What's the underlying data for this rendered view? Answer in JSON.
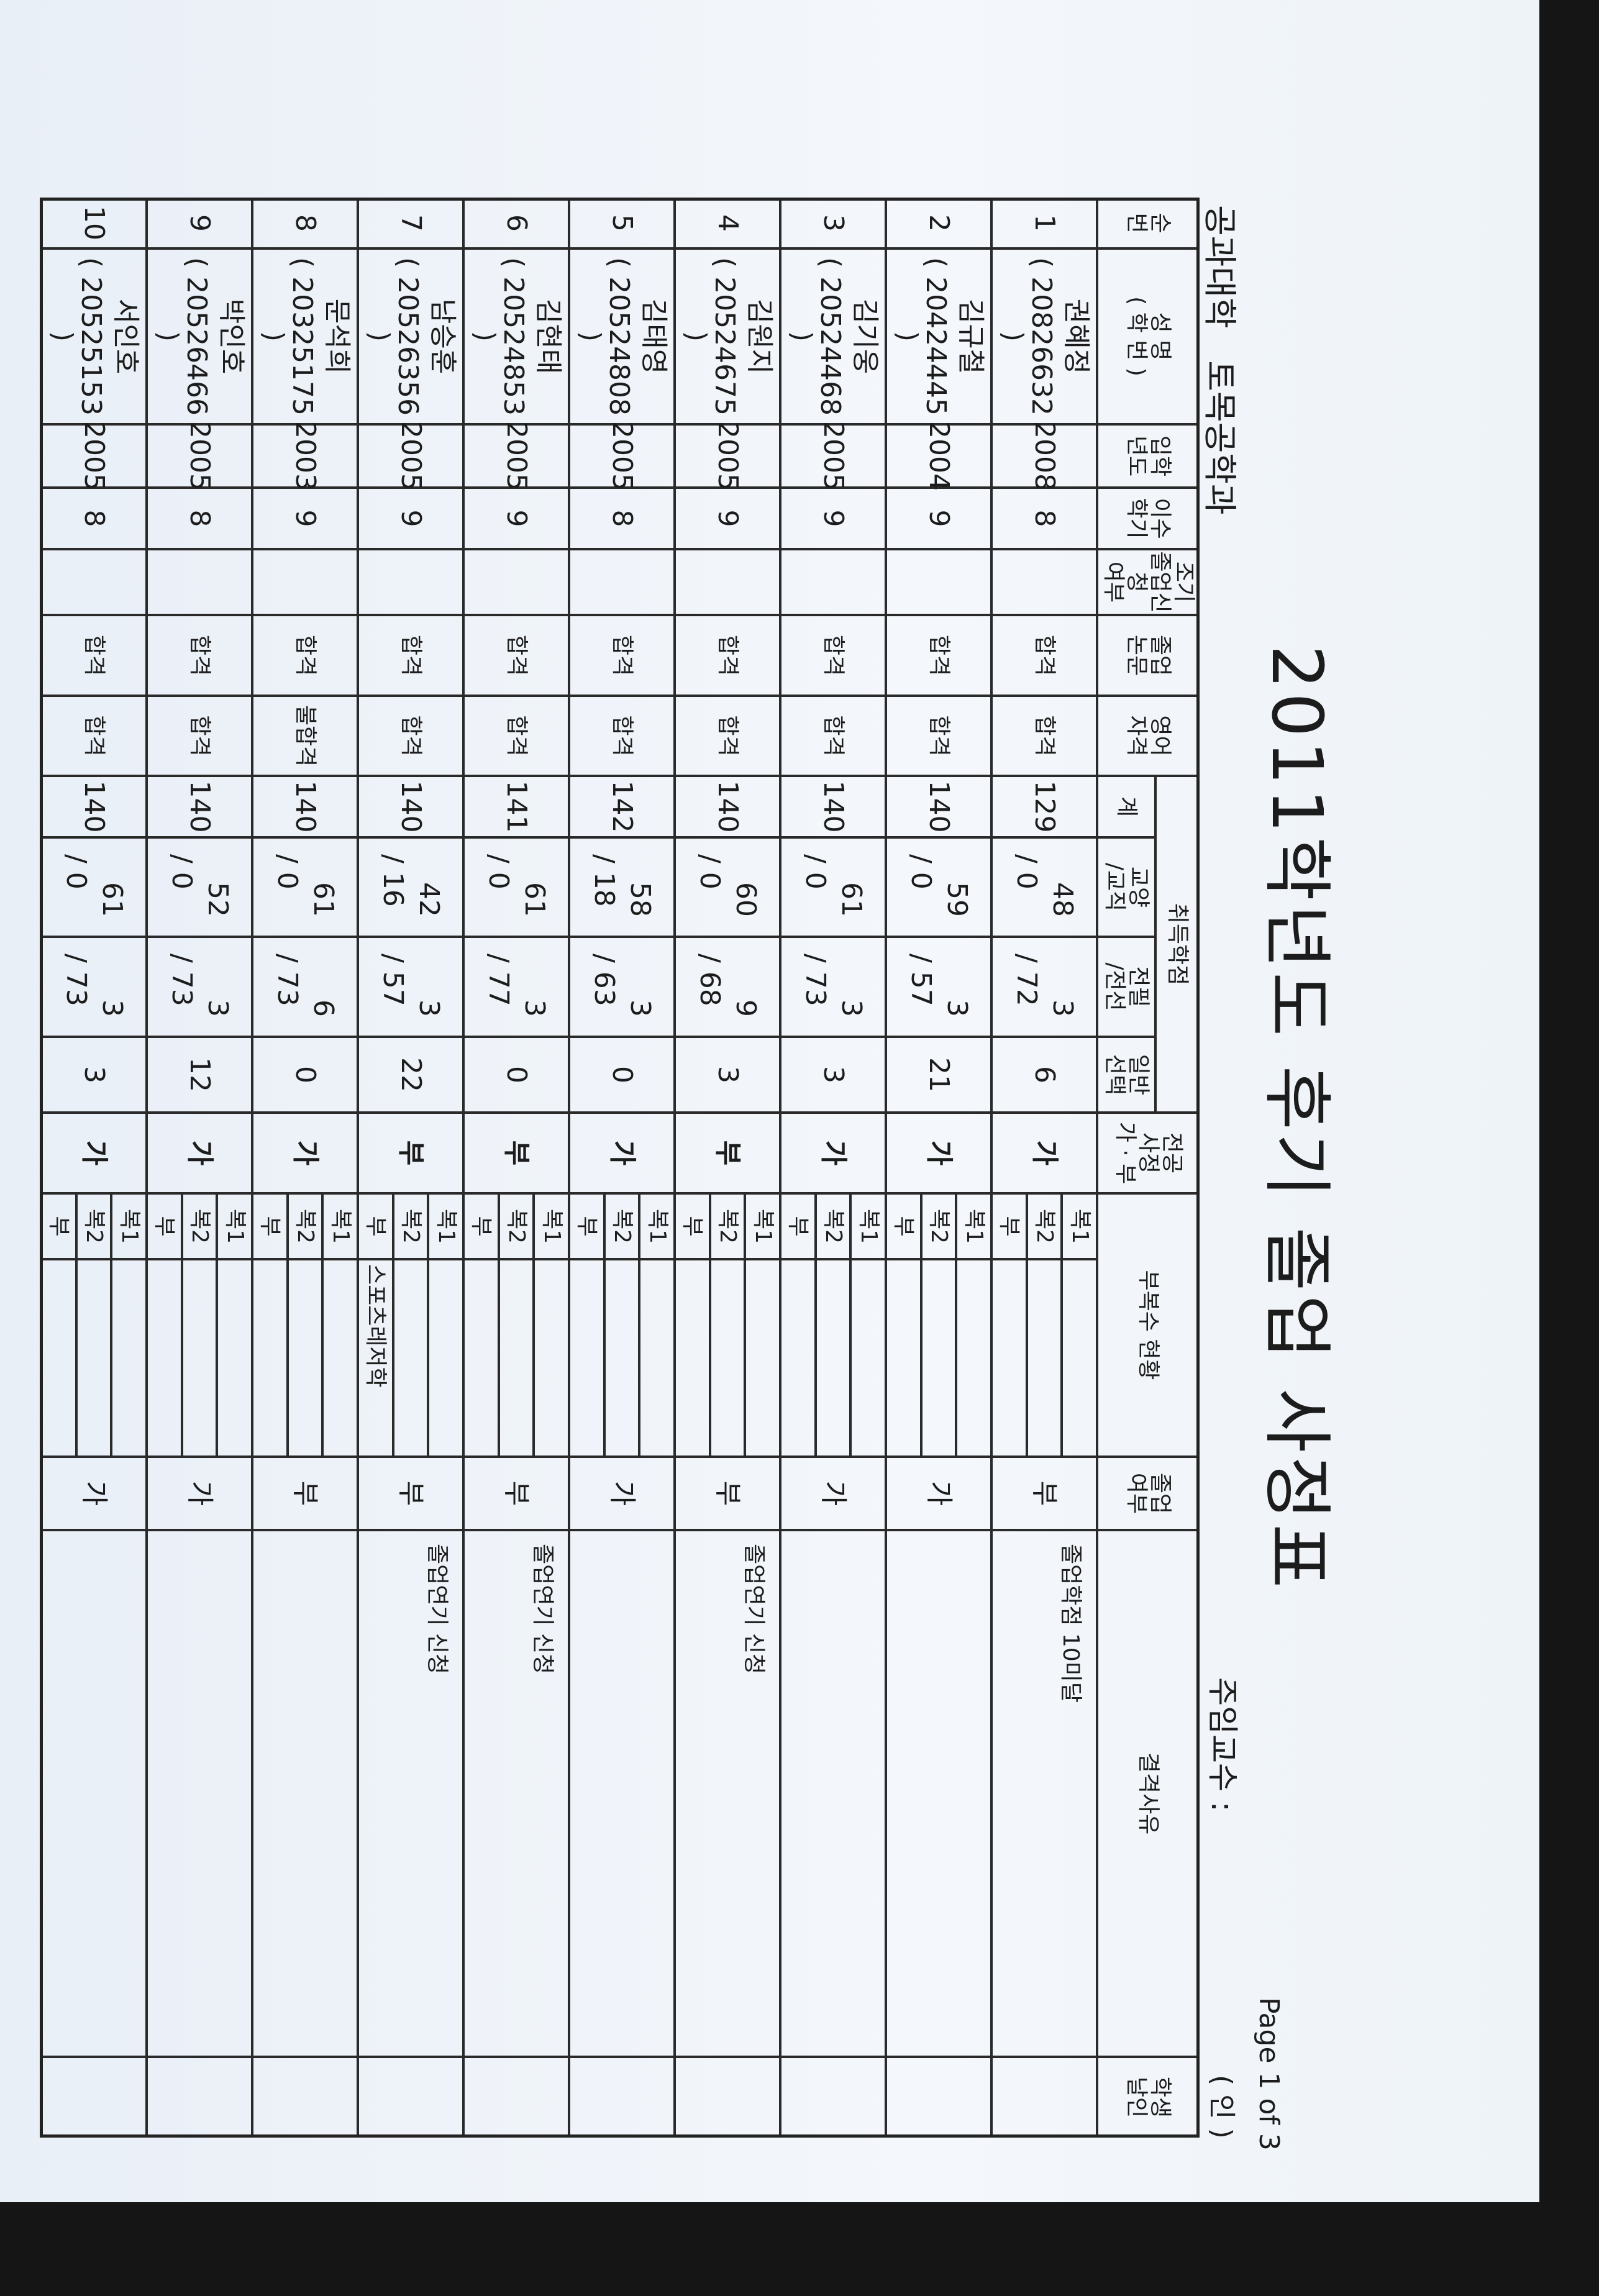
{
  "title": "2011학년도 후기 졸업 사정표",
  "department": "공과대학   토목공학과",
  "advisor_label": "주임교수 :",
  "page": "Page 1 of 3",
  "seal_mark": "( 인 )",
  "headers": {
    "no": "순\n번",
    "name": "성  명\n( 학  번 )",
    "year": "입학\n년도",
    "semester": "이수\n학기",
    "early": "조기\n졸업신청\n여부",
    "thesis": "졸업\n논문",
    "english": "영어\n자격",
    "credits_group": "취득학점",
    "total": "계",
    "gyo": "교양\n/교직",
    "jeon": "전필\n/전선",
    "ilban": "일반\n선택",
    "major_eval": "전공\n사정\n가 · 부",
    "minor_status": "부복수  현황",
    "grad": "졸업\n여부",
    "reason": "결격사유",
    "seal": "학생\n날인"
  },
  "minor_labels": [
    "복1",
    "복2",
    "부"
  ],
  "rows": [
    {
      "no": "1",
      "name": "권혜정",
      "id": "( 20826632 )",
      "year": "2008",
      "semester": "8",
      "early": "",
      "thesis": "합격",
      "english": "합격",
      "total": "129",
      "gyo": "48",
      "gyojik": "/ 0",
      "jeonpil": "3",
      "jeonseon": "/ 72",
      "ilban": "6",
      "major_eval": "가",
      "minor": [
        "",
        "",
        ""
      ],
      "grad": "부",
      "reason": "졸업학점 10미달",
      "seal": ""
    },
    {
      "no": "2",
      "name": "김규철",
      "id": "( 20424445 )",
      "year": "2004",
      "semester": "9",
      "early": "",
      "thesis": "합격",
      "english": "합격",
      "total": "140",
      "gyo": "59",
      "gyojik": "/ 0",
      "jeonpil": "3",
      "jeonseon": "/ 57",
      "ilban": "21",
      "major_eval": "가",
      "minor": [
        "",
        "",
        ""
      ],
      "grad": "가",
      "reason": "",
      "seal": ""
    },
    {
      "no": "3",
      "name": "김기웅",
      "id": "( 20524468 )",
      "year": "2005",
      "semester": "9",
      "early": "",
      "thesis": "합격",
      "english": "합격",
      "total": "140",
      "gyo": "61",
      "gyojik": "/ 0",
      "jeonpil": "3",
      "jeonseon": "/ 73",
      "ilban": "3",
      "major_eval": "가",
      "minor": [
        "",
        "",
        ""
      ],
      "grad": "가",
      "reason": "",
      "seal": ""
    },
    {
      "no": "4",
      "name": "김원지",
      "id": "( 20524675 )",
      "year": "2005",
      "semester": "9",
      "early": "",
      "thesis": "합격",
      "english": "합격",
      "total": "140",
      "gyo": "60",
      "gyojik": "/ 0",
      "jeonpil": "9",
      "jeonseon": "/ 68",
      "ilban": "3",
      "major_eval": "부",
      "minor": [
        "",
        "",
        ""
      ],
      "grad": "부",
      "reason": "졸업연기 신청",
      "seal": ""
    },
    {
      "no": "5",
      "name": "김태영",
      "id": "( 20524808 )",
      "year": "2005",
      "semester": "8",
      "early": "",
      "thesis": "합격",
      "english": "합격",
      "total": "142",
      "gyo": "58",
      "gyojik": "/ 18",
      "jeonpil": "3",
      "jeonseon": "/ 63",
      "ilban": "0",
      "major_eval": "가",
      "minor": [
        "",
        "",
        ""
      ],
      "grad": "가",
      "reason": "",
      "seal": ""
    },
    {
      "no": "6",
      "name": "김현태",
      "id": "( 20524853 )",
      "year": "2005",
      "semester": "9",
      "early": "",
      "thesis": "합격",
      "english": "합격",
      "total": "141",
      "gyo": "61",
      "gyojik": "/ 0",
      "jeonpil": "3",
      "jeonseon": "/ 77",
      "ilban": "0",
      "major_eval": "부",
      "minor": [
        "",
        "",
        ""
      ],
      "grad": "부",
      "reason": "졸업연기 신청",
      "seal": ""
    },
    {
      "no": "7",
      "name": "남승훈",
      "id": "( 20526356 )",
      "year": "2005",
      "semester": "9",
      "early": "",
      "thesis": "합격",
      "english": "합격",
      "total": "140",
      "gyo": "42",
      "gyojik": "/ 16",
      "jeonpil": "3",
      "jeonseon": "/ 57",
      "ilban": "22",
      "major_eval": "부",
      "minor": [
        "",
        "",
        "스포츠레저학"
      ],
      "grad": "부",
      "reason": "졸업연기 신청",
      "seal": ""
    },
    {
      "no": "8",
      "name": "문석희",
      "id": "( 20325175 )",
      "year": "2003",
      "semester": "9",
      "early": "",
      "thesis": "합격",
      "english": "불합격",
      "total": "140",
      "gyo": "61",
      "gyojik": "/ 0",
      "jeonpil": "6",
      "jeonseon": "/ 73",
      "ilban": "0",
      "major_eval": "가",
      "minor": [
        "",
        "",
        ""
      ],
      "grad": "부",
      "reason": "",
      "seal": ""
    },
    {
      "no": "9",
      "name": "박인호",
      "id": "( 20526466 )",
      "year": "2005",
      "semester": "8",
      "early": "",
      "thesis": "합격",
      "english": "합격",
      "total": "140",
      "gyo": "52",
      "gyojik": "/ 0",
      "jeonpil": "3",
      "jeonseon": "/ 73",
      "ilban": "12",
      "major_eval": "가",
      "minor": [
        "",
        "",
        ""
      ],
      "grad": "가",
      "reason": "",
      "seal": ""
    },
    {
      "no": "10",
      "name": "서인호",
      "id": "( 20525153 )",
      "year": "2005",
      "semester": "8",
      "early": "",
      "thesis": "합격",
      "english": "합격",
      "total": "140",
      "gyo": "61",
      "gyojik": "/ 0",
      "jeonpil": "3",
      "jeonseon": "/ 73",
      "ilban": "3",
      "major_eval": "가",
      "minor": [
        "",
        "",
        ""
      ],
      "grad": "가",
      "reason": "",
      "seal": ""
    }
  ],
  "colors": {
    "ink": "#1c1c1c",
    "paper": "#f1f5fa",
    "scanner_background": "#151515"
  }
}
